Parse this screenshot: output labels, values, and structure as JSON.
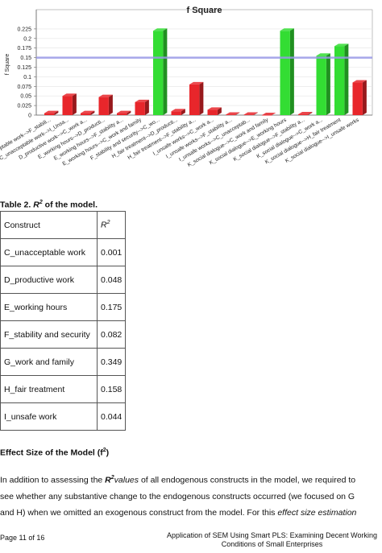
{
  "chart_data": {
    "type": "bar",
    "title": "f Square",
    "ylabel": "f Square",
    "ylim": [
      0,
      0.25
    ],
    "yticks": [
      0,
      0.025,
      0.05,
      0.075,
      0.1,
      0.125,
      0.15,
      0.175,
      0.2,
      0.225
    ],
    "ytick_labels": [
      "0",
      "0.025",
      "0.05",
      "0.075",
      "0.1",
      "0.125",
      "0.15",
      "0.175",
      "0.2",
      "0.225"
    ],
    "reference_line": 0.15,
    "categories": [
      "cceptable work-->F_stabili...",
      "C_unacceptable work-->I_Unsa...",
      "D_productive work-->C_work a...",
      "E_working hours-->D_producti...",
      "E_working hours-->F_stability a...",
      "E_working hours-->C_work and family",
      "F_stability and security-->C_wo...",
      "H_fair treatment-->D_producti...",
      "H_fair treatment-->F_stability a...",
      "I_unsafe works-->C_work a...",
      "I_unsafe works-->F_stability a...",
      "I_unsafe works-->C_unacceptab...",
      "K_social dialogue-->C_work and family",
      "K_social dialogue-->E_working hours",
      "K_social dialogue-->F_stability a...",
      "K_social dialogue-->C_work a...",
      "K_social dialogue-->H_fair treatment",
      "K_social dialogue-->I_unsafe works"
    ],
    "values": [
      0.005,
      0.05,
      0.005,
      0.047,
      0.005,
      0.034,
      0.22,
      0.01,
      0.08,
      0.014,
      0.001,
      0.001,
      0.0,
      0.22,
      0.002,
      0.155,
      0.18,
      0.085
    ],
    "colors": [
      "red",
      "red",
      "red",
      "red",
      "red",
      "red",
      "green",
      "red",
      "red",
      "red",
      "red",
      "red",
      "red",
      "green",
      "red",
      "green",
      "green",
      "red"
    ],
    "color_hex": {
      "red": "#e8262b",
      "green": "#33dd33",
      "reference": "#9999e8"
    },
    "grid": true,
    "legend": "none"
  },
  "table": {
    "caption_prefix": "Table 2. ",
    "caption_r": "R",
    "caption_sup": "2",
    "caption_suffix": " of the model.",
    "header_construct": "Construct",
    "header_r": "R",
    "header_sup": "2",
    "rows": [
      {
        "construct": "C_unacceptable work",
        "r2": "0.001"
      },
      {
        "construct": "D_productive work",
        "r2": "0.048"
      },
      {
        "construct": "E_working hours",
        "r2": "0.175"
      },
      {
        "construct": "F_stability and security",
        "r2": "0.082"
      },
      {
        "construct": "G_work and family",
        "r2": "0.349"
      },
      {
        "construct": "H_fair treatment",
        "r2": "0.158"
      },
      {
        "construct": "I_unsafe work",
        "r2": "0.044"
      }
    ]
  },
  "section": {
    "title_prefix": "Effect Size of the Model (f",
    "title_sup": "2",
    "title_suffix": ")"
  },
  "paragraph": {
    "l1_a": "In addition to assessing the ",
    "l1_r": "R",
    "l1_sup": "2",
    "l1_values": "values",
    "l1_b": " of all endogenous constructs in the model, we required to",
    "l2": "see whether any substantive change to the endogenous constructs occurred (we focused on G",
    "l3_a": "and H) when we omitted an exogenous construct from the model. For this ",
    "l3_it": "effect size estimation"
  },
  "footer": {
    "page": "Page 11 of 16",
    "right_line1": "Application of SEM Using Smart PLS: Examining Decent Working",
    "right_line2": "Conditions of Small Enterprises"
  }
}
